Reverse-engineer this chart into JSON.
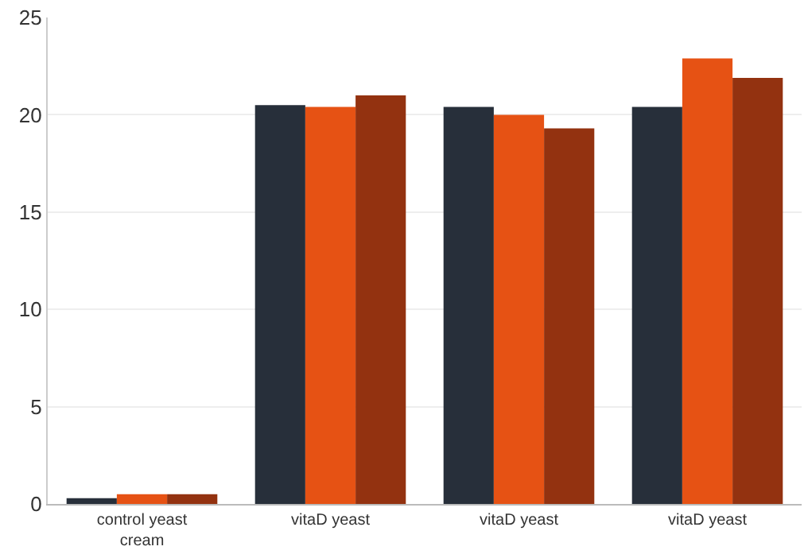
{
  "chart_data": {
    "type": "bar",
    "categories": [
      "control yeast cream",
      "vitaD yeast",
      "vitaD yeast",
      "vitaD yeast"
    ],
    "series": [
      {
        "color": "#272f3a",
        "values": [
          0.3,
          20.5,
          20.4,
          20.4
        ]
      },
      {
        "color": "#e65214",
        "values": [
          0.5,
          20.4,
          20.0,
          22.9
        ]
      },
      {
        "color": "#933210",
        "values": [
          0.5,
          21.0,
          19.3,
          21.9
        ]
      }
    ],
    "ylim": [
      0,
      25
    ],
    "yticks": [
      0,
      5,
      10,
      15,
      20,
      25
    ],
    "grid": "y"
  }
}
